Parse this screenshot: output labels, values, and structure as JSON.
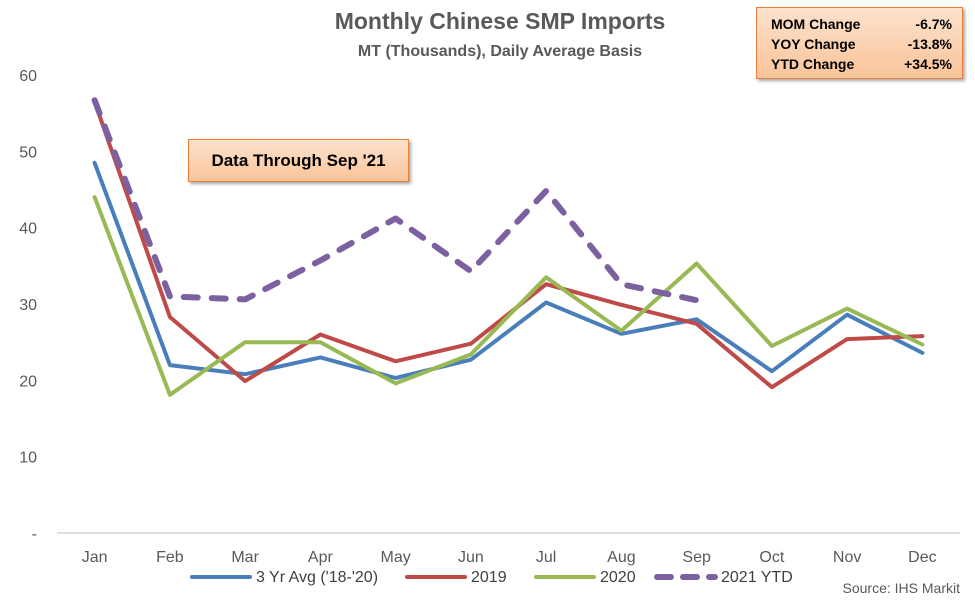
{
  "chart_data": {
    "type": "line",
    "title": "Monthly Chinese SMP Imports",
    "subtitle": "MT (Thousands), Daily Average Basis",
    "categories": [
      "Jan",
      "Feb",
      "Mar",
      "Apr",
      "May",
      "Jun",
      "Jul",
      "Aug",
      "Sep",
      "Oct",
      "Nov",
      "Dec"
    ],
    "ylim": [
      0,
      60
    ],
    "yticks": [
      "-",
      "10",
      "20",
      "30",
      "40",
      "50",
      "60"
    ],
    "grid": false,
    "legend_position": "bottom",
    "series": [
      {
        "name": "3 Yr Avg ('18-'20)",
        "color": "#4a7ebb",
        "dashed": false,
        "values": [
          48.5,
          22.0,
          20.8,
          23.0,
          20.3,
          22.7,
          30.2,
          26.1,
          28.0,
          21.2,
          28.6,
          23.6
        ]
      },
      {
        "name": "2019",
        "color": "#be4b48",
        "dashed": false,
        "values": [
          56.5,
          28.3,
          19.9,
          26.0,
          22.5,
          24.8,
          32.6,
          29.9,
          27.4,
          19.1,
          25.4,
          25.8
        ]
      },
      {
        "name": "2020",
        "color": "#98b954",
        "dashed": false,
        "values": [
          44.0,
          18.1,
          25.0,
          25.0,
          19.6,
          23.4,
          33.5,
          26.5,
          35.3,
          24.5,
          29.4,
          24.7
        ]
      },
      {
        "name": "2021 YTD",
        "color": "#7d60a0",
        "dashed": true,
        "values": [
          56.7,
          31.0,
          30.6,
          35.7,
          41.2,
          34.3,
          44.8,
          32.6,
          30.5,
          null,
          null,
          null
        ]
      }
    ],
    "stats": [
      {
        "label": "MOM Change",
        "value": "-6.7%"
      },
      {
        "label": "YOY Change",
        "value": "-13.8%"
      },
      {
        "label": "YTD Change",
        "value": "+34.5%"
      }
    ],
    "annotation": "Data Through Sep '21",
    "source": "Source: IHS Markit"
  }
}
